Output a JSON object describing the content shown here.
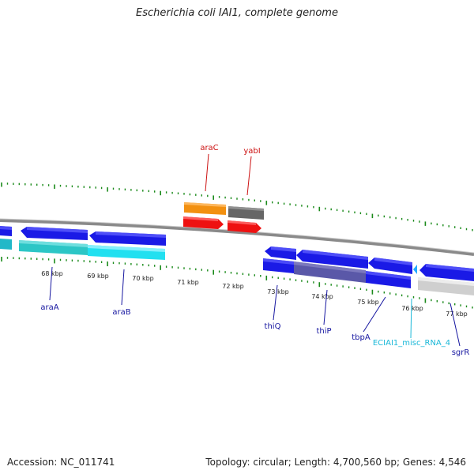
{
  "title": "Escherichia coli IAI1, complete genome",
  "footer": {
    "accession": "Accession: NC_011741",
    "topology": "Topology: circular; Length: 4,700,560 bp; Genes: 4,546"
  },
  "colors": {
    "backbone": "#8a8a8a",
    "tick": "#1a8a1a",
    "cds_blue": "#1a1ae6",
    "cds_dark": "#5a58a8",
    "cyan": "#22e0f0",
    "teal": "#2cc6c6",
    "red": "#ee1111",
    "orange": "#f29010",
    "gray": "#666666",
    "lightgray": "#cfcfcf",
    "label_blue": "#1616a0",
    "label_red": "#cc1111",
    "label_cyan": "#1ab8d8"
  },
  "kbp_labels": [
    "68 kbp",
    "69 kbp",
    "70 kbp",
    "71 kbp",
    "72 kbp",
    "73 kbp",
    "74 kbp",
    "75 kbp",
    "76 kbp",
    "77 kbp"
  ],
  "gene_labels": [
    {
      "text": "araC",
      "color": "red",
      "strand": "top"
    },
    {
      "text": "yabI",
      "color": "red",
      "strand": "top"
    },
    {
      "text": "araA",
      "color": "blue",
      "strand": "bottom"
    },
    {
      "text": "araB",
      "color": "blue",
      "strand": "bottom"
    },
    {
      "text": "thiQ",
      "color": "blue",
      "strand": "bottom"
    },
    {
      "text": "thiP",
      "color": "blue",
      "strand": "bottom"
    },
    {
      "text": "tbpA",
      "color": "blue",
      "strand": "bottom"
    },
    {
      "text": "ECIAI1_misc_RNA_4",
      "color": "cyan",
      "strand": "bottom"
    },
    {
      "text": "sgrR",
      "color": "blue",
      "strand": "bottom"
    }
  ]
}
